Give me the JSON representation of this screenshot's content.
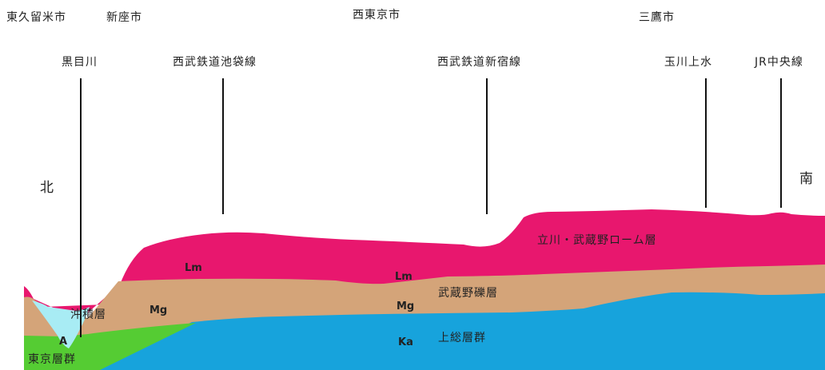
{
  "cities": {
    "higashikurume": "東久留米市",
    "niiza": "新座市",
    "nishitokyo": "西東京市",
    "mitaka": "三鷹市"
  },
  "landmarks": {
    "kurome_river": "黒目川",
    "ikebukuro_line": "西武鉄道池袋線",
    "shinjuku_line": "西武鉄道新宿線",
    "tamagawa_josui": "玉川上水",
    "chuo_line": "JR中央線"
  },
  "directions": {
    "north": "北",
    "south": "南"
  },
  "layers": {
    "alluvium": "沖積層",
    "tokyo_group": "東京層群",
    "loam": "立川・武蔵野ローム層",
    "gravel": "武蔵野礫層",
    "kazusa": "上総層群"
  },
  "layer_codes": {
    "lm_left": "Lm",
    "lm_mid": "Lm",
    "mg_left": "Mg",
    "mg_mid": "Mg",
    "ka": "Ka",
    "a": "A"
  },
  "colors": {
    "loam": "#e8176e",
    "gravel": "#d4a479",
    "kazusa": "#17a3dc",
    "tokyo_group": "#55cc33",
    "alluvium": "#a8ecf4"
  }
}
